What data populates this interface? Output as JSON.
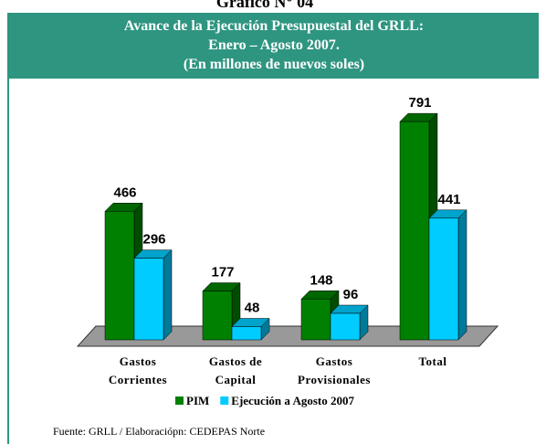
{
  "chart_data": {
    "type": "bar3d",
    "heading": "Gráfico N° 04",
    "title": [
      "Avance de la Ejecución Presupuestal del GRLL:",
      "Enero – Agosto 2007.",
      "(En millones de nuevos soles)"
    ],
    "categories": [
      "Gastos Corrientes",
      "Gastos de Capital",
      "Gastos Provisionales",
      "Total"
    ],
    "series": [
      {
        "name": "PIM",
        "color": "#008000",
        "values": [
          466,
          177,
          148,
          791
        ]
      },
      {
        "name": "Ejecución a Agosto 2007",
        "color": "#00ccff",
        "values": [
          296,
          48,
          96,
          441
        ]
      }
    ],
    "source": "Fuente: GRLL / Elaboraciópn: CEDEPAS Norte"
  }
}
